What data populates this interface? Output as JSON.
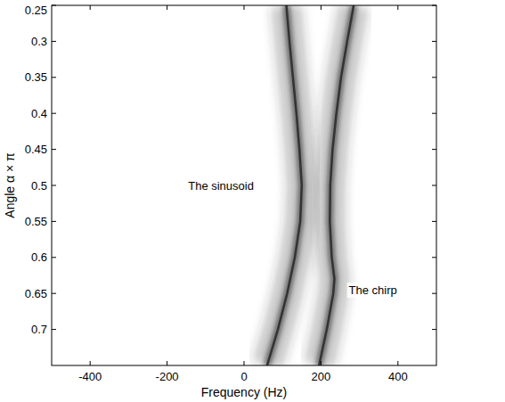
{
  "chart_data": {
    "type": "line",
    "xlabel": "Frequency (Hz)",
    "ylabel": "Angle α × π",
    "xlim": [
      -500,
      500
    ],
    "xticks": [
      -400,
      -200,
      0,
      200,
      400
    ],
    "ylim": [
      0.75,
      0.25
    ],
    "yticks": [
      0.25,
      0.3,
      0.35,
      0.4,
      0.45,
      0.5,
      0.55,
      0.6,
      0.65,
      0.7
    ],
    "grid": false,
    "series": [
      {
        "color": "#333333",
        "x": [
          110,
          118,
          127,
          136,
          144,
          150,
          146,
          132,
          112,
          88,
          60
        ],
        "values": [
          0.25,
          0.3,
          0.35,
          0.4,
          0.45,
          0.5,
          0.55,
          0.6,
          0.65,
          0.7,
          0.75
        ]
      },
      {
        "color": "#333333",
        "x": [
          285,
          268,
          252,
          240,
          230,
          224,
          223,
          228,
          235,
          232,
          215,
          195
        ],
        "values": [
          0.25,
          0.3,
          0.35,
          0.4,
          0.45,
          0.5,
          0.55,
          0.6,
          0.63,
          0.65,
          0.7,
          0.75
        ]
      }
    ],
    "annotations": [
      {
        "text": "The sinusoid",
        "x": -60,
        "y": 0.5
      },
      {
        "text": "The chirp",
        "x": 335,
        "y": 0.645
      }
    ]
  }
}
